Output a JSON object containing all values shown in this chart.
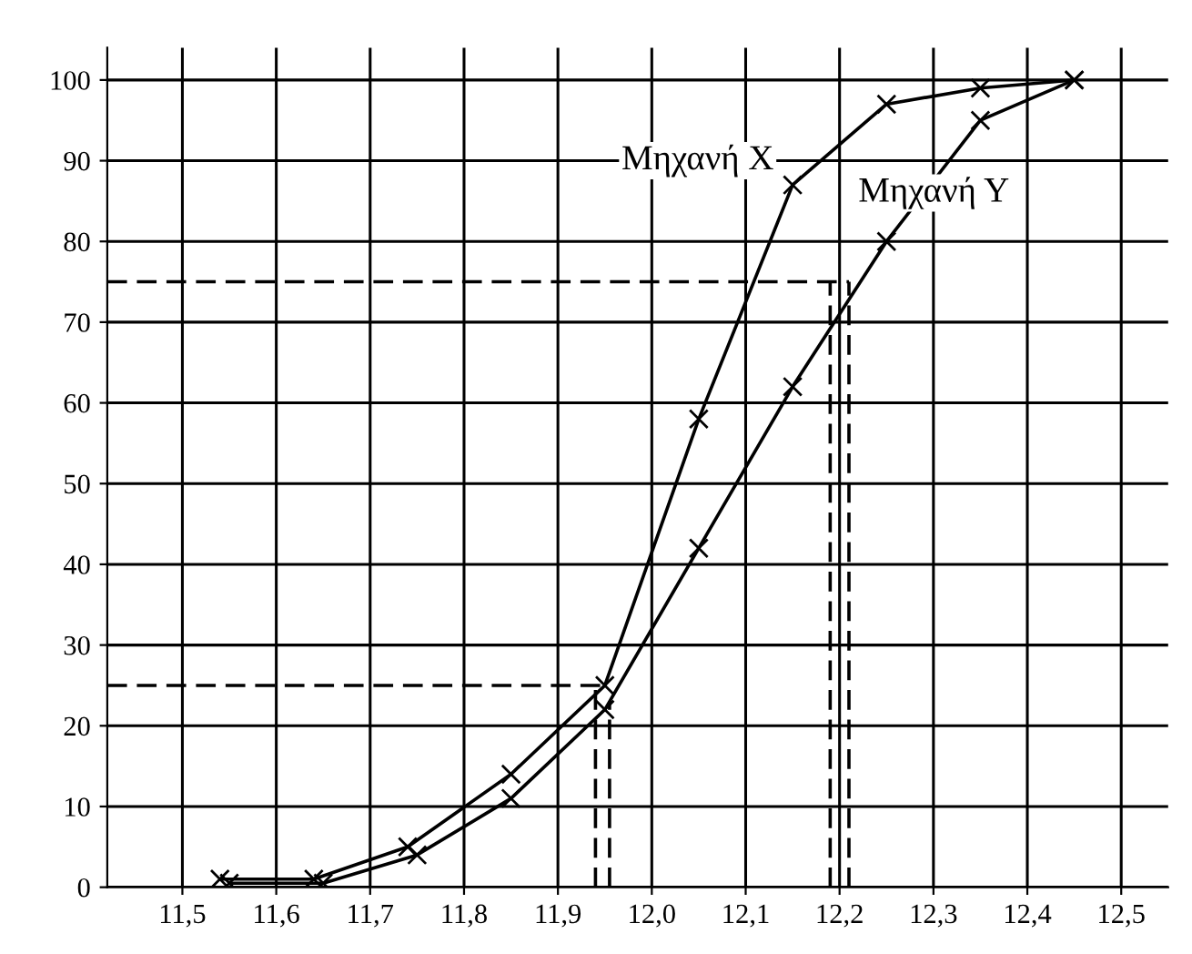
{
  "chart_data": {
    "type": "line",
    "series": [
      {
        "name": "Μηχανή X",
        "color": "#000000",
        "marker": "cross",
        "line_style": "solid",
        "x": [
          11.54,
          11.64,
          11.74,
          11.85,
          11.95,
          12.05,
          12.15,
          12.25,
          12.35,
          12.45
        ],
        "values": [
          1,
          1,
          5,
          14,
          25,
          58,
          87,
          97,
          99,
          100
        ]
      },
      {
        "name": "Μηχανή Y",
        "color": "#000000",
        "marker": "cross",
        "line_style": "solid",
        "x": [
          11.55,
          11.65,
          11.75,
          11.85,
          11.95,
          12.05,
          12.15,
          12.25,
          12.35,
          12.45
        ],
        "values": [
          0.5,
          0.5,
          4,
          11,
          22,
          42,
          62,
          80,
          95,
          100
        ]
      },
      {
        "color": "#000000",
        "marker": "none",
        "line_style": "dashed",
        "x": [
          11.42,
          11.95
        ],
        "values": [
          25,
          25
        ]
      },
      {
        "color": "#000000",
        "marker": "none",
        "line_style": "dashed",
        "x": [
          11.94,
          11.94
        ],
        "values": [
          0,
          25
        ]
      },
      {
        "color": "#000000",
        "marker": "none",
        "line_style": "dashed",
        "x": [
          11.955,
          11.955
        ],
        "values": [
          0,
          23
        ]
      },
      {
        "color": "#000000",
        "marker": "none",
        "line_style": "dashed",
        "x": [
          11.42,
          12.21
        ],
        "values": [
          75,
          75
        ]
      },
      {
        "color": "#000000",
        "marker": "none",
        "line_style": "dashed",
        "x": [
          12.19,
          12.19
        ],
        "values": [
          0,
          75
        ]
      },
      {
        "color": "#000000",
        "marker": "none",
        "line_style": "dashed",
        "x": [
          12.21,
          12.21
        ],
        "values": [
          0,
          75
        ]
      }
    ],
    "xlim": [
      11.42,
      12.55
    ],
    "ylim": [
      0,
      104
    ],
    "xticks": [
      {
        "value": 11.5,
        "label": "11,5"
      },
      {
        "value": 11.6,
        "label": "11,6"
      },
      {
        "value": 11.7,
        "label": "11,7"
      },
      {
        "value": 11.8,
        "label": "11,8"
      },
      {
        "value": 11.9,
        "label": "11,9"
      },
      {
        "value": 12.0,
        "label": "12,0"
      },
      {
        "value": 12.1,
        "label": "12,1"
      },
      {
        "value": 12.2,
        "label": "12,2"
      },
      {
        "value": 12.3,
        "label": "12,3"
      },
      {
        "value": 12.4,
        "label": "12,4"
      },
      {
        "value": 12.5,
        "label": "12,5"
      }
    ],
    "yticks": [
      0,
      10,
      20,
      30,
      40,
      50,
      60,
      70,
      80,
      90,
      100
    ],
    "grid": true,
    "legend": false
  }
}
